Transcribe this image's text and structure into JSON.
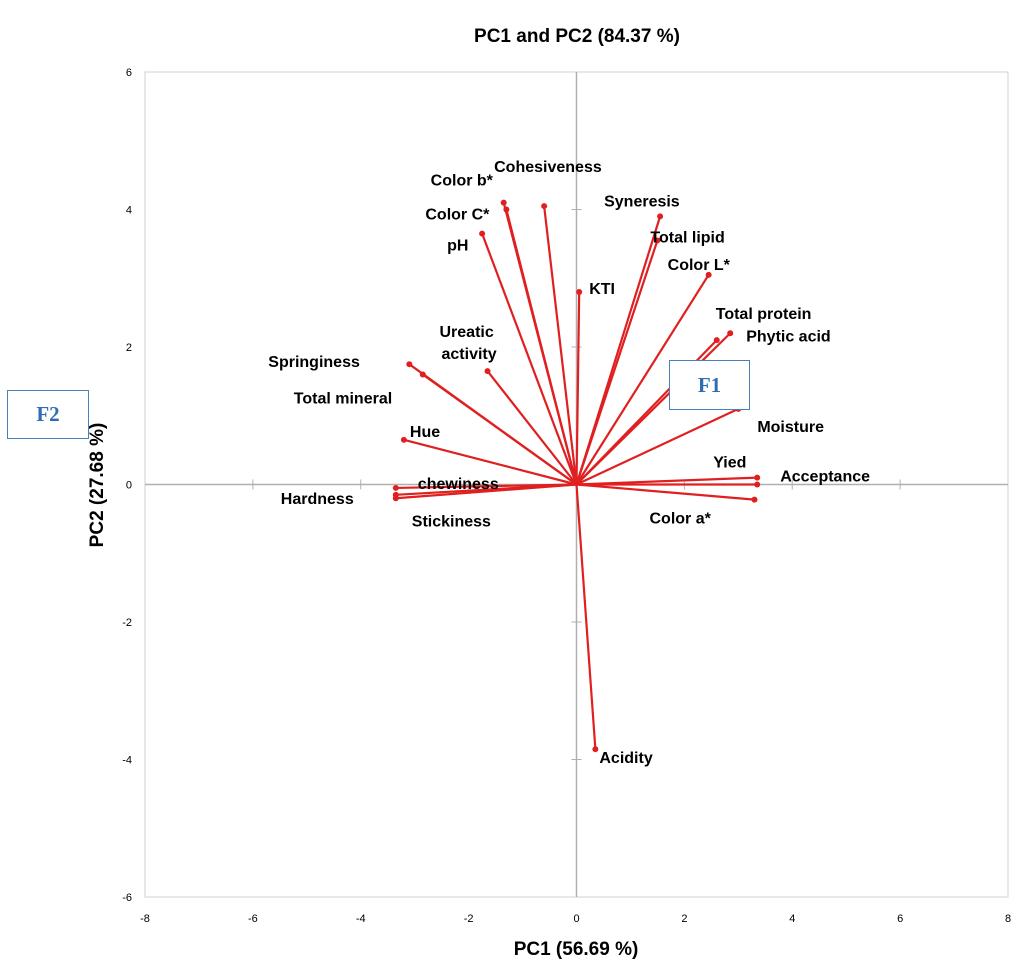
{
  "chart_data": {
    "type": "scatter",
    "subtype": "pca-biplot-loadings",
    "title": "PC1 and PC2 (84.37 %)",
    "xlabel": "PC1 (56.69 %)",
    "ylabel": "PC2 (27.68 %)",
    "xlim": [
      -8,
      8
    ],
    "ylim": [
      -6,
      6
    ],
    "xticks": [
      "-8",
      "-6",
      "-4",
      "-2",
      "0",
      "2",
      "4",
      "6",
      "8"
    ],
    "yticks": [
      "-6",
      "-4",
      "-2",
      "0",
      "2",
      "4",
      "6"
    ],
    "grid": false,
    "vector_color": "#e02020",
    "vectors": [
      {
        "name": "Cohesiveness",
        "x": -0.6,
        "y": 4.05
      },
      {
        "name": "Color b*",
        "x": -1.35,
        "y": 4.1
      },
      {
        "name": "Color C*",
        "x": -1.3,
        "y": 4.0
      },
      {
        "name": "Syneresis",
        "x": 1.55,
        "y": 3.9
      },
      {
        "name": "Total lipid",
        "x": 1.5,
        "y": 3.55
      },
      {
        "name": "pH",
        "x": -1.75,
        "y": 3.65
      },
      {
        "name": "KTI",
        "x": 0.05,
        "y": 2.8
      },
      {
        "name": "Color  L*",
        "x": 2.45,
        "y": 3.05
      },
      {
        "name": "Total protein",
        "x": 2.6,
        "y": 2.1
      },
      {
        "name": "Phytic acid",
        "x": 2.85,
        "y": 2.2
      },
      {
        "name": "Ureatic activity",
        "x": -1.65,
        "y": 1.65
      },
      {
        "name": "Springiness",
        "x": -3.1,
        "y": 1.75
      },
      {
        "name": "Total mineral",
        "x": -2.85,
        "y": 1.6
      },
      {
        "name": "Moisture",
        "x": 3.0,
        "y": 1.1
      },
      {
        "name": "Hue",
        "x": -3.2,
        "y": 0.65
      },
      {
        "name": "Yied",
        "x": 3.35,
        "y": 0.1
      },
      {
        "name": "Acceptance",
        "x": 3.35,
        "y": 0.0
      },
      {
        "name": "chewiness",
        "x": -3.35,
        "y": -0.05
      },
      {
        "name": "Hardness",
        "x": -3.35,
        "y": -0.15
      },
      {
        "name": "Stickiness",
        "x": -3.35,
        "y": -0.2
      },
      {
        "name": "Color a*",
        "x": 3.3,
        "y": -0.22
      },
      {
        "name": "Acidity",
        "x": 0.35,
        "y": -3.85
      }
    ]
  },
  "callouts": {
    "f1": "F1",
    "f2": "F2"
  }
}
